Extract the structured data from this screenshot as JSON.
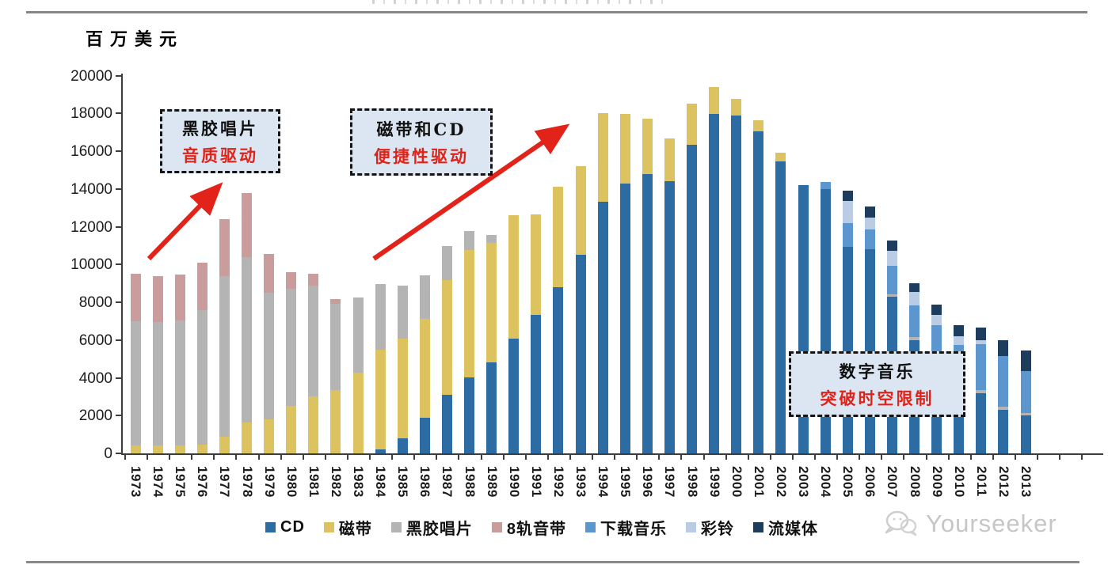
{
  "page": {
    "unit_label": "百万美元",
    "watermark_text": "Yourseeker"
  },
  "annotations": [
    {
      "line1": "黑胶唱片",
      "line2": "音质驱动"
    },
    {
      "line1": "磁带和CD",
      "line2": "便捷性驱动"
    },
    {
      "line1": "数字音乐",
      "line2": "突破时空限制"
    }
  ],
  "colors": {
    "cd": "#2d6ba3",
    "tape": "#ddc35f",
    "vinyl": "#b4b4b4",
    "eight_track": "#cb9c9c",
    "download": "#5b96cf",
    "ringtone": "#b9cce4",
    "streaming": "#1c3d5e",
    "arrow_red": "#e2231a",
    "annotation_bg": "#dce6f2",
    "annotation_red_text": "#e02319"
  },
  "chart_data": {
    "type": "bar",
    "stacked": true,
    "title": "",
    "xlabel": "",
    "ylabel": "百万美元",
    "ylim": [
      0,
      20000
    ],
    "ytick_step": 2000,
    "grid": false,
    "legend_position": "bottom",
    "categories": [
      1973,
      1974,
      1975,
      1976,
      1977,
      1978,
      1979,
      1980,
      1981,
      1982,
      1983,
      1984,
      1985,
      1986,
      1987,
      1988,
      1989,
      1990,
      1991,
      1992,
      1993,
      1994,
      1995,
      1996,
      1997,
      1998,
      1999,
      2000,
      2001,
      2002,
      2003,
      2004,
      2005,
      2006,
      2007,
      2008,
      2009,
      2010,
      2011,
      2012,
      2013
    ],
    "series": [
      {
        "name": "CD",
        "color": "#2d6ba3",
        "values": [
          0,
          0,
          0,
          0,
          0,
          0,
          0,
          0,
          0,
          0,
          0,
          200,
          800,
          1880,
          3080,
          4040,
          4810,
          6080,
          7330,
          8810,
          10500,
          13300,
          14300,
          14770,
          14420,
          16350,
          17950,
          17900,
          17060,
          15450,
          14200,
          14000,
          10950,
          10800,
          8300,
          6000,
          4455,
          3405,
          3190,
          2320,
          2000
        ]
      },
      {
        "name": "磁带",
        "color": "#ddc35f",
        "values": [
          400,
          400,
          400,
          450,
          900,
          1650,
          1800,
          2500,
          3000,
          3350,
          4270,
          5280,
          5290,
          5230,
          6080,
          6740,
          6320,
          6520,
          5300,
          5290,
          4700,
          4700,
          3650,
          2950,
          2270,
          2170,
          1450,
          875,
          560,
          450,
          0,
          0,
          0,
          0,
          0,
          0,
          0,
          0,
          0,
          0,
          0
        ]
      },
      {
        "name": "黑胶唱片",
        "color": "#b4b4b4",
        "values": [
          6600,
          6550,
          6650,
          7150,
          8500,
          8750,
          6700,
          6200,
          5900,
          4550,
          3980,
          3490,
          2810,
          2310,
          1820,
          1010,
          420,
          0,
          0,
          0,
          0,
          0,
          0,
          0,
          0,
          0,
          0,
          0,
          0,
          0,
          0,
          0,
          0,
          0,
          100,
          140,
          140,
          140,
          140,
          170,
          140
        ]
      },
      {
        "name": "8轨音带",
        "color": "#cb9c9c",
        "values": [
          2500,
          2450,
          2400,
          2500,
          3000,
          3400,
          2050,
          900,
          600,
          250,
          0,
          0,
          0,
          0,
          0,
          0,
          0,
          0,
          0,
          0,
          0,
          0,
          0,
          0,
          0,
          0,
          0,
          0,
          0,
          0,
          0,
          0,
          0,
          0,
          0,
          0,
          0,
          0,
          0,
          0,
          0
        ]
      },
      {
        "name": "下载音乐",
        "color": "#5b96cf",
        "values": [
          0,
          0,
          0,
          0,
          0,
          0,
          0,
          0,
          0,
          0,
          0,
          0,
          0,
          0,
          0,
          0,
          0,
          0,
          0,
          0,
          0,
          0,
          0,
          0,
          0,
          0,
          0,
          0,
          0,
          0,
          0,
          350,
          1250,
          1050,
          1540,
          1680,
          2175,
          2175,
          2460,
          2665,
          2200
        ]
      },
      {
        "name": "彩铃",
        "color": "#b9cce4",
        "values": [
          0,
          0,
          0,
          0,
          0,
          0,
          0,
          0,
          0,
          0,
          0,
          0,
          0,
          0,
          0,
          0,
          0,
          0,
          0,
          0,
          0,
          0,
          0,
          0,
          0,
          0,
          0,
          0,
          0,
          0,
          0,
          0,
          1150,
          630,
          775,
          705,
          560,
          490,
          210,
          0,
          0
        ]
      },
      {
        "name": "流媒体",
        "color": "#1c3d5e",
        "values": [
          0,
          0,
          0,
          0,
          0,
          0,
          0,
          0,
          0,
          0,
          0,
          0,
          0,
          0,
          0,
          0,
          0,
          0,
          0,
          0,
          0,
          0,
          0,
          0,
          0,
          0,
          0,
          0,
          0,
          0,
          0,
          0,
          550,
          570,
          560,
          490,
          560,
          560,
          655,
          845,
          1100
        ]
      }
    ]
  }
}
